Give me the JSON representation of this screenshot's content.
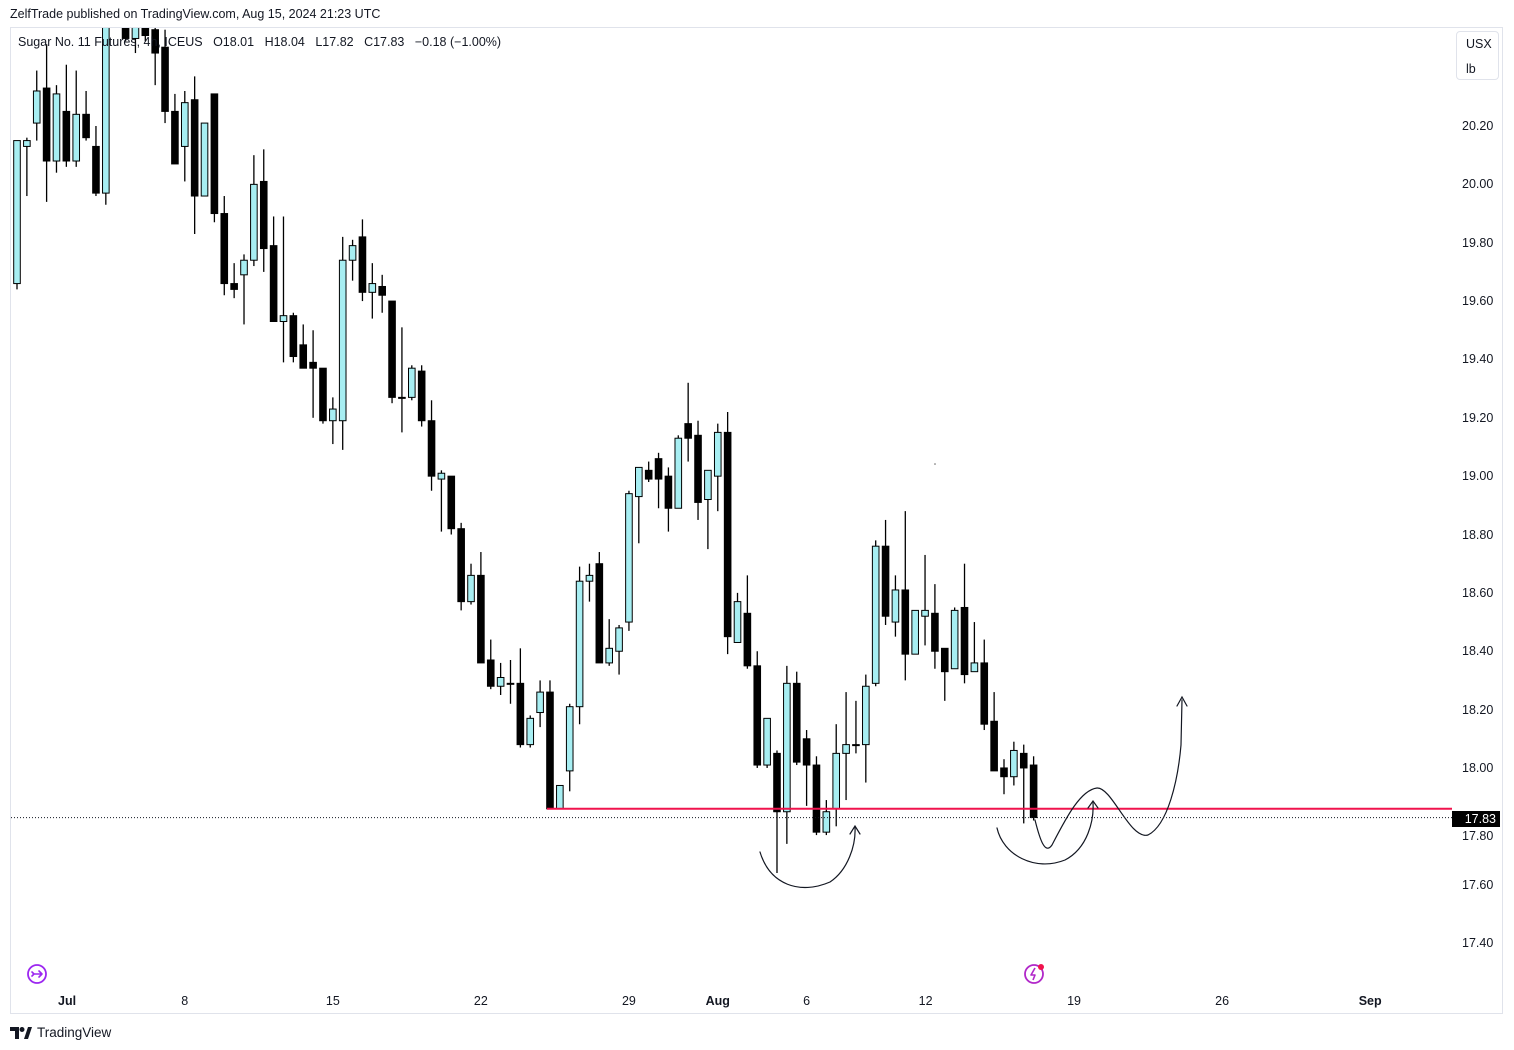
{
  "attribution": "ZelfTrade published on TradingView.com, Aug 15, 2024 21:23 UTC",
  "legend": {
    "symbol": "Sugar No. 11 Futures, 4h, ICEUS",
    "open": "O18.01",
    "high": "H18.04",
    "low": "L17.82",
    "close": "C17.83",
    "change": "−0.18 (−1.00%)"
  },
  "unit": {
    "currency": "USX",
    "per": "lb"
  },
  "last_price_label": "17.83",
  "brand": "TradingView",
  "icons": {
    "left": "replay-arrow-icon",
    "right": "lightning-alert-icon"
  },
  "colors": {
    "up": "#a7eef2",
    "down": "#000000",
    "support_line": "#f0134d",
    "accent": "#9c27f0"
  },
  "chart_data": {
    "type": "bar",
    "style": "candlestick",
    "title": "Sugar No. 11 Futures, 4h, ICEUS",
    "xlabel": "",
    "ylabel": "USX/lb",
    "ylim": [
      17.246,
      20.54
    ],
    "grid": false,
    "y_ticks": [
      "17.40",
      "17.60",
      "17.80",
      "18.00",
      "18.20",
      "18.40",
      "18.60",
      "18.80",
      "19.00",
      "19.20",
      "19.40",
      "19.60",
      "19.80",
      "20.00",
      "20.20"
    ],
    "x_ticks": [
      {
        "label": "Jul",
        "index": 5.07,
        "bold": true
      },
      {
        "label": "8",
        "index": 17
      },
      {
        "label": "15",
        "index": 32
      },
      {
        "label": "22",
        "index": 47
      },
      {
        "label": "29",
        "index": 62
      },
      {
        "label": "Aug",
        "index": 71,
        "bold": true
      },
      {
        "label": "6",
        "index": 80
      },
      {
        "label": "12",
        "index": 92.06
      },
      {
        "label": "19",
        "index": 107.1
      },
      {
        "label": "26",
        "index": 122.1
      },
      {
        "label": "Sep",
        "index": 137.1,
        "bold": true
      }
    ],
    "ohlc_fields": [
      "open",
      "high",
      "low",
      "close"
    ],
    "ohlc": [
      [
        19.66,
        20.15,
        19.64,
        20.15
      ],
      [
        20.13,
        20.16,
        19.96,
        20.15
      ],
      [
        20.21,
        20.39,
        20.15,
        20.32
      ],
      [
        20.33,
        20.48,
        19.94,
        20.08
      ],
      [
        20.08,
        20.34,
        20.04,
        20.31
      ],
      [
        20.25,
        20.41,
        20.06,
        20.08
      ],
      [
        20.08,
        20.39,
        20.06,
        20.24
      ],
      [
        20.24,
        20.32,
        20.15,
        20.16
      ],
      [
        20.13,
        20.2,
        19.96,
        19.97
      ],
      [
        19.97,
        20.7,
        19.93,
        20.62
      ],
      [
        20.62,
        20.8,
        20.55,
        20.7
      ],
      [
        20.6,
        20.65,
        20.49,
        20.5
      ],
      [
        20.5,
        20.6,
        20.45,
        20.56
      ],
      [
        20.56,
        20.6,
        20.49,
        20.51
      ],
      [
        20.53,
        20.58,
        20.34,
        20.45
      ],
      [
        20.47,
        20.53,
        20.21,
        20.25
      ],
      [
        20.25,
        20.31,
        20.07,
        20.07
      ],
      [
        20.13,
        20.32,
        20.01,
        20.28
      ],
      [
        20.29,
        20.37,
        19.83,
        19.96
      ],
      [
        19.96,
        20.21,
        19.96,
        20.21
      ],
      [
        20.31,
        20.31,
        19.87,
        19.9
      ],
      [
        19.9,
        19.96,
        19.62,
        19.66
      ],
      [
        19.66,
        19.73,
        19.61,
        19.64
      ],
      [
        19.69,
        19.76,
        19.52,
        19.74
      ],
      [
        19.74,
        20.1,
        19.72,
        20.0
      ],
      [
        20.01,
        20.12,
        19.7,
        19.78
      ],
      [
        19.79,
        19.89,
        19.53,
        19.53
      ],
      [
        19.53,
        19.89,
        19.39,
        19.55
      ],
      [
        19.55,
        19.56,
        19.39,
        19.41
      ],
      [
        19.45,
        19.52,
        19.37,
        19.37
      ],
      [
        19.39,
        19.5,
        19.2,
        19.37
      ],
      [
        19.37,
        19.37,
        19.18,
        19.19
      ],
      [
        19.19,
        19.27,
        19.11,
        19.23
      ],
      [
        19.19,
        19.82,
        19.09,
        19.74
      ],
      [
        19.74,
        19.81,
        19.67,
        19.79
      ],
      [
        19.82,
        19.88,
        19.6,
        19.63
      ],
      [
        19.63,
        19.73,
        19.54,
        19.66
      ],
      [
        19.65,
        19.69,
        19.56,
        19.62
      ],
      [
        19.6,
        19.6,
        19.25,
        19.27
      ],
      [
        19.27,
        19.51,
        19.15,
        19.27
      ],
      [
        19.27,
        19.38,
        19.26,
        19.37
      ],
      [
        19.36,
        19.38,
        19.17,
        19.19
      ],
      [
        19.19,
        19.26,
        18.95,
        19.0
      ],
      [
        18.99,
        19.02,
        18.81,
        19.01
      ],
      [
        19.0,
        19.0,
        18.8,
        18.82
      ],
      [
        18.82,
        18.84,
        18.54,
        18.57
      ],
      [
        18.57,
        18.7,
        18.56,
        18.66
      ],
      [
        18.66,
        18.74,
        18.36,
        18.36
      ],
      [
        18.37,
        18.44,
        18.27,
        18.28
      ],
      [
        18.28,
        18.36,
        18.25,
        18.31
      ],
      [
        18.29,
        18.37,
        18.22,
        18.29
      ],
      [
        18.29,
        18.41,
        18.07,
        18.08
      ],
      [
        18.08,
        18.18,
        18.07,
        18.17
      ],
      [
        18.19,
        18.3,
        18.14,
        18.26
      ],
      [
        18.26,
        18.3,
        17.86,
        17.86
      ],
      [
        17.86,
        17.94,
        17.86,
        17.94
      ],
      [
        17.99,
        18.22,
        17.92,
        18.21
      ],
      [
        18.21,
        18.69,
        18.15,
        18.64
      ],
      [
        18.64,
        18.7,
        18.57,
        18.66
      ],
      [
        18.7,
        18.74,
        18.36,
        18.36
      ],
      [
        18.36,
        18.51,
        18.35,
        18.41
      ],
      [
        18.4,
        18.49,
        18.32,
        18.48
      ],
      [
        18.5,
        18.95,
        18.47,
        18.94
      ],
      [
        18.93,
        19.03,
        18.77,
        19.03
      ],
      [
        19.02,
        19.05,
        18.98,
        18.99
      ],
      [
        19.06,
        19.08,
        18.89,
        18.99
      ],
      [
        19.0,
        19.03,
        18.81,
        18.89
      ],
      [
        18.89,
        19.14,
        18.89,
        19.13
      ],
      [
        19.18,
        19.32,
        19.05,
        19.13
      ],
      [
        19.14,
        19.19,
        18.85,
        18.91
      ],
      [
        18.92,
        19.02,
        18.75,
        19.02
      ],
      [
        19.0,
        19.18,
        18.88,
        19.15
      ],
      [
        19.15,
        19.22,
        18.39,
        18.45
      ],
      [
        18.43,
        18.6,
        18.43,
        18.57
      ],
      [
        18.53,
        18.66,
        18.34,
        18.35
      ],
      [
        18.35,
        18.4,
        18.0,
        18.01
      ],
      [
        18.01,
        18.17,
        18.0,
        18.17
      ],
      [
        18.05,
        18.06,
        17.64,
        17.85
      ],
      [
        17.85,
        18.35,
        17.74,
        18.29
      ],
      [
        18.29,
        18.33,
        18.01,
        18.02
      ],
      [
        18.1,
        18.13,
        17.87,
        18.01
      ],
      [
        18.01,
        18.04,
        17.77,
        17.78
      ],
      [
        17.78,
        17.89,
        17.77,
        17.85
      ],
      [
        17.86,
        18.15,
        17.8,
        18.05
      ],
      [
        18.05,
        18.26,
        17.89,
        18.08
      ],
      [
        18.08,
        18.23,
        18.05,
        18.08
      ],
      [
        18.08,
        18.32,
        17.95,
        18.28
      ],
      [
        18.29,
        18.78,
        18.28,
        18.76
      ],
      [
        18.76,
        18.85,
        18.49,
        18.52
      ],
      [
        18.5,
        18.66,
        18.45,
        18.61
      ],
      [
        18.61,
        18.88,
        18.3,
        18.39
      ],
      [
        18.39,
        18.54,
        18.39,
        18.54
      ],
      [
        18.52,
        18.73,
        18.42,
        18.54
      ],
      [
        18.53,
        18.63,
        18.34,
        18.4
      ],
      [
        18.41,
        18.41,
        18.23,
        18.33
      ],
      [
        18.34,
        18.55,
        18.34,
        18.54
      ],
      [
        18.55,
        18.7,
        18.29,
        18.32
      ],
      [
        18.33,
        18.5,
        18.33,
        18.36
      ],
      [
        18.36,
        18.44,
        18.13,
        18.15
      ],
      [
        18.16,
        18.26,
        17.99,
        17.99
      ],
      [
        18.0,
        18.03,
        17.91,
        17.97
      ],
      [
        17.97,
        18.09,
        17.94,
        18.06
      ],
      [
        18.05,
        18.08,
        17.81,
        18.0
      ],
      [
        18.01,
        18.04,
        17.82,
        17.83
      ]
    ],
    "annotations": [
      {
        "type": "horizontal-line",
        "price": 17.86,
        "from_index": 54,
        "color": "#f0134d"
      },
      {
        "type": "last-price-line",
        "price": 17.83
      }
    ]
  }
}
